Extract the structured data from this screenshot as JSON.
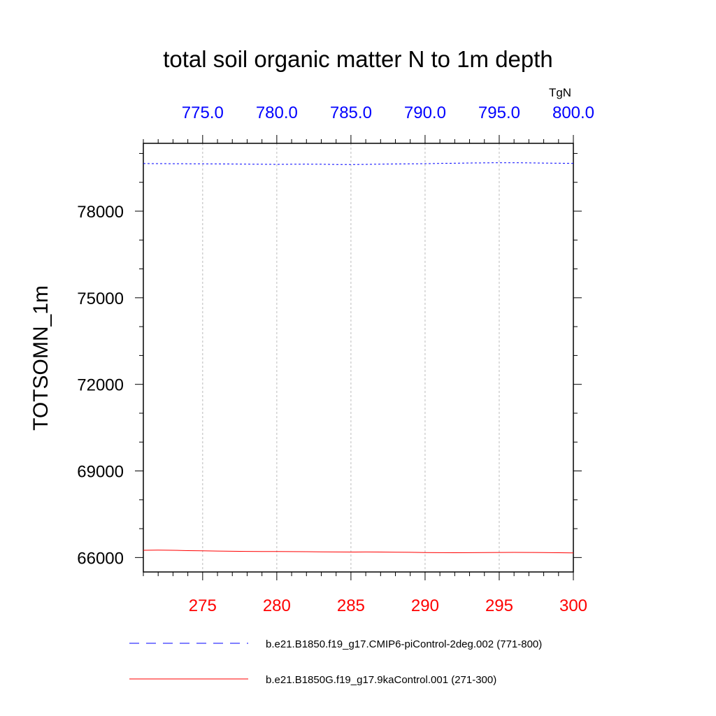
{
  "chart_data": {
    "type": "line",
    "title": "total soil organic matter N to 1m depth",
    "ylabel": "TOTSOMN_1m",
    "top_axis_unit": "TgN",
    "ylim": [
      65500,
      80350
    ],
    "y_ticks": [
      66000,
      69000,
      72000,
      75000,
      78000
    ],
    "y_tick_labels": [
      "66000",
      "69000",
      "72000",
      "75000",
      "78000"
    ],
    "bottom_axis": {
      "range": [
        271,
        300
      ],
      "ticks": [
        275,
        280,
        285,
        290,
        295,
        300
      ],
      "tick_labels": [
        "275",
        "280",
        "285",
        "290",
        "295",
        "300"
      ],
      "color": "#ff0000"
    },
    "top_axis": {
      "range": [
        771,
        800
      ],
      "ticks": [
        775,
        780,
        785,
        790,
        795,
        800
      ],
      "tick_labels": [
        "775.0",
        "780.0",
        "785.0",
        "790.0",
        "795.0",
        "800.0"
      ],
      "color": "#0000ff"
    },
    "grid": "vertical dashed at major ticks",
    "series": [
      {
        "name": "b.e21.B1850.f19_g17.CMIP6-piControl-2deg.002 (771-800)",
        "axis": "top",
        "color": "#0000ff",
        "style": "dashed",
        "x": [
          771,
          772,
          773,
          774,
          775,
          776,
          777,
          778,
          779,
          780,
          781,
          782,
          783,
          784,
          785,
          786,
          787,
          788,
          789,
          790,
          791,
          792,
          793,
          794,
          795,
          796,
          797,
          798,
          799,
          800
        ],
        "values": [
          79650,
          79648,
          79645,
          79642,
          79640,
          79638,
          79632,
          79628,
          79625,
          79622,
          79625,
          79628,
          79625,
          79618,
          79615,
          79620,
          79628,
          79635,
          79640,
          79645,
          79655,
          79662,
          79670,
          79675,
          79678,
          79680,
          79675,
          79668,
          79662,
          79658
        ]
      },
      {
        "name": "b.e21.B1850G.f19_g17.9kaControl.001 (271-300)",
        "axis": "bottom",
        "color": "#ff0000",
        "style": "solid",
        "x": [
          271,
          272,
          273,
          274,
          275,
          276,
          277,
          278,
          279,
          280,
          281,
          282,
          283,
          284,
          285,
          286,
          287,
          288,
          289,
          290,
          291,
          292,
          293,
          294,
          295,
          296,
          297,
          298,
          299,
          300
        ],
        "values": [
          66250,
          66255,
          66250,
          66240,
          66235,
          66225,
          66218,
          66212,
          66210,
          66208,
          66205,
          66202,
          66198,
          66194,
          66190,
          66192,
          66190,
          66185,
          66180,
          66172,
          66168,
          66165,
          66168,
          66172,
          66176,
          66178,
          66175,
          66170,
          66165,
          66160
        ]
      }
    ]
  }
}
